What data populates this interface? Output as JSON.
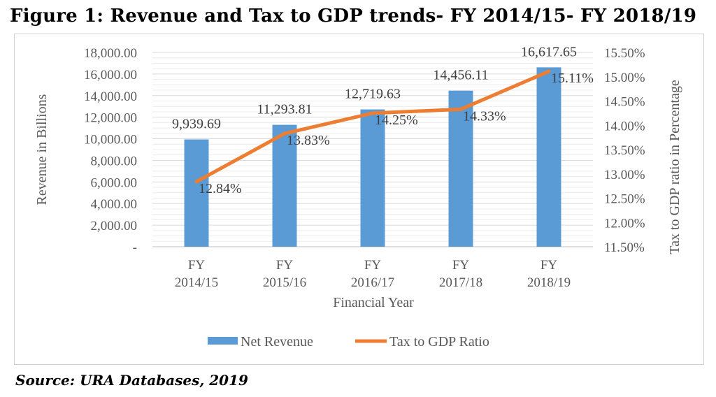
{
  "figure_title": "Figure 1: Revenue and Tax to GDP trends- FY 2014/15- FY 2018/19",
  "source": "Source: URA Databases, 2019",
  "chart_data": {
    "type": "bar",
    "categories": [
      [
        "FY",
        "2014/15"
      ],
      [
        "FY",
        "2015/16"
      ],
      [
        "FY",
        "2016/17"
      ],
      [
        "FY",
        "2017/18"
      ],
      [
        "FY",
        "2018/19"
      ]
    ],
    "xlabel": "Financial Year",
    "ylabel": "Revenue in Billions",
    "y2label": "Tax to GDP ratio in Percentage",
    "ylim": [
      0,
      18000
    ],
    "y2lim": [
      11.5,
      15.5
    ],
    "y_ticks": [
      "-",
      "2,000.00",
      "4,000.00",
      "6,000.00",
      "8,000.00",
      "10,000.00",
      "12,000.00",
      "14,000.00",
      "16,000.00",
      "18,000.00"
    ],
    "y2_ticks": [
      "11.50%",
      "12.00%",
      "12.50%",
      "13.00%",
      "13.50%",
      "14.00%",
      "14.50%",
      "15.00%",
      "15.50%"
    ],
    "grid": true,
    "legend_position": "bottom",
    "series": [
      {
        "name": "Net Revenue",
        "type": "bar",
        "axis": "left",
        "color": "#5b9bd5",
        "values": [
          9939.69,
          11293.81,
          12719.63,
          14456.11,
          16617.65
        ],
        "labels": [
          "9,939.69",
          "11,293.81",
          "12,719.63",
          "14,456.11",
          "16,617.65"
        ]
      },
      {
        "name": "Tax to GDP Ratio",
        "type": "line",
        "axis": "right",
        "color": "#ed7d31",
        "values": [
          12.84,
          13.83,
          14.25,
          14.33,
          15.11
        ],
        "labels": [
          "12.84%",
          "13.83%",
          "14.25%",
          "14.33%",
          "15.11%"
        ]
      }
    ]
  }
}
